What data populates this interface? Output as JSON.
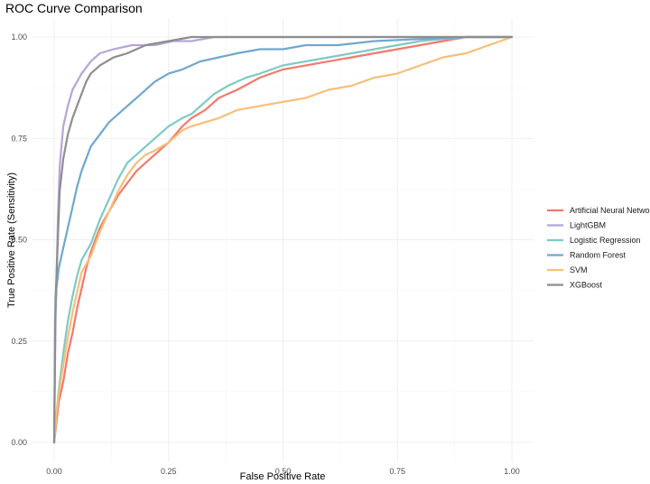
{
  "chart_data": {
    "type": "line",
    "title": "ROC Curve Comparison",
    "xlabel": "False Positive Rate",
    "ylabel": "True Positive Rate (Sensitivity)",
    "xlim": [
      0,
      1
    ],
    "ylim": [
      0,
      1
    ],
    "x_ticks": [
      "0.00",
      "0.25",
      "0.50",
      "0.75",
      "1.00"
    ],
    "y_ticks": [
      "0.00",
      "0.25",
      "0.50",
      "0.75",
      "1.00"
    ],
    "grid": true,
    "legend_position": "right",
    "series": [
      {
        "name": "Artificial Neural Network",
        "color": "#F4796A",
        "points": [
          [
            0,
            0
          ],
          [
            0.005,
            0.05
          ],
          [
            0.01,
            0.1
          ],
          [
            0.02,
            0.15
          ],
          [
            0.03,
            0.22
          ],
          [
            0.04,
            0.27
          ],
          [
            0.05,
            0.33
          ],
          [
            0.06,
            0.38
          ],
          [
            0.07,
            0.43
          ],
          [
            0.08,
            0.47
          ],
          [
            0.09,
            0.5
          ],
          [
            0.1,
            0.53
          ],
          [
            0.12,
            0.57
          ],
          [
            0.14,
            0.61
          ],
          [
            0.16,
            0.64
          ],
          [
            0.18,
            0.67
          ],
          [
            0.2,
            0.69
          ],
          [
            0.22,
            0.71
          ],
          [
            0.25,
            0.74
          ],
          [
            0.28,
            0.78
          ],
          [
            0.3,
            0.8
          ],
          [
            0.33,
            0.82
          ],
          [
            0.36,
            0.85
          ],
          [
            0.4,
            0.87
          ],
          [
            0.45,
            0.9
          ],
          [
            0.5,
            0.92
          ],
          [
            0.55,
            0.93
          ],
          [
            0.6,
            0.94
          ],
          [
            0.65,
            0.95
          ],
          [
            0.7,
            0.96
          ],
          [
            0.75,
            0.97
          ],
          [
            0.8,
            0.98
          ],
          [
            0.85,
            0.99
          ],
          [
            0.9,
            1.0
          ],
          [
            1.0,
            1.0
          ]
        ]
      },
      {
        "name": "LightGBM",
        "color": "#B7A5D9",
        "points": [
          [
            0,
            0
          ],
          [
            0.003,
            0.3
          ],
          [
            0.008,
            0.55
          ],
          [
            0.012,
            0.68
          ],
          [
            0.02,
            0.78
          ],
          [
            0.03,
            0.83
          ],
          [
            0.04,
            0.87
          ],
          [
            0.06,
            0.91
          ],
          [
            0.08,
            0.94
          ],
          [
            0.1,
            0.96
          ],
          [
            0.13,
            0.97
          ],
          [
            0.17,
            0.98
          ],
          [
            0.22,
            0.98
          ],
          [
            0.26,
            0.99
          ],
          [
            0.3,
            0.99
          ],
          [
            0.35,
            1.0
          ],
          [
            1.0,
            1.0
          ]
        ]
      },
      {
        "name": "Logistic Regression",
        "color": "#7ECAC4",
        "points": [
          [
            0,
            0
          ],
          [
            0.005,
            0.07
          ],
          [
            0.01,
            0.13
          ],
          [
            0.02,
            0.22
          ],
          [
            0.03,
            0.3
          ],
          [
            0.04,
            0.36
          ],
          [
            0.05,
            0.41
          ],
          [
            0.06,
            0.45
          ],
          [
            0.08,
            0.49
          ],
          [
            0.1,
            0.55
          ],
          [
            0.12,
            0.6
          ],
          [
            0.14,
            0.65
          ],
          [
            0.16,
            0.69
          ],
          [
            0.18,
            0.71
          ],
          [
            0.2,
            0.73
          ],
          [
            0.22,
            0.75
          ],
          [
            0.25,
            0.78
          ],
          [
            0.28,
            0.8
          ],
          [
            0.3,
            0.81
          ],
          [
            0.32,
            0.83
          ],
          [
            0.35,
            0.86
          ],
          [
            0.38,
            0.88
          ],
          [
            0.42,
            0.9
          ],
          [
            0.45,
            0.91
          ],
          [
            0.5,
            0.93
          ],
          [
            0.55,
            0.94
          ],
          [
            0.6,
            0.95
          ],
          [
            0.65,
            0.96
          ],
          [
            0.7,
            0.97
          ],
          [
            0.75,
            0.98
          ],
          [
            0.8,
            0.99
          ],
          [
            0.85,
            0.995
          ],
          [
            0.9,
            1.0
          ],
          [
            1.0,
            1.0
          ]
        ]
      },
      {
        "name": "Random Forest",
        "color": "#6FA8CF",
        "points": [
          [
            0,
            0
          ],
          [
            0.002,
            0.3
          ],
          [
            0.005,
            0.38
          ],
          [
            0.01,
            0.43
          ],
          [
            0.02,
            0.48
          ],
          [
            0.03,
            0.53
          ],
          [
            0.04,
            0.58
          ],
          [
            0.05,
            0.63
          ],
          [
            0.06,
            0.67
          ],
          [
            0.07,
            0.7
          ],
          [
            0.08,
            0.73
          ],
          [
            0.1,
            0.76
          ],
          [
            0.12,
            0.79
          ],
          [
            0.14,
            0.81
          ],
          [
            0.16,
            0.83
          ],
          [
            0.18,
            0.85
          ],
          [
            0.2,
            0.87
          ],
          [
            0.22,
            0.89
          ],
          [
            0.25,
            0.91
          ],
          [
            0.28,
            0.92
          ],
          [
            0.32,
            0.94
          ],
          [
            0.36,
            0.95
          ],
          [
            0.4,
            0.96
          ],
          [
            0.45,
            0.97
          ],
          [
            0.5,
            0.97
          ],
          [
            0.55,
            0.98
          ],
          [
            0.62,
            0.98
          ],
          [
            0.7,
            0.99
          ],
          [
            0.8,
            0.995
          ],
          [
            0.9,
            1.0
          ],
          [
            1.0,
            1.0
          ]
        ]
      },
      {
        "name": "SVM",
        "color": "#F8BE78",
        "points": [
          [
            0,
            0
          ],
          [
            0.005,
            0.07
          ],
          [
            0.01,
            0.12
          ],
          [
            0.02,
            0.19
          ],
          [
            0.03,
            0.26
          ],
          [
            0.04,
            0.32
          ],
          [
            0.05,
            0.37
          ],
          [
            0.06,
            0.42
          ],
          [
            0.08,
            0.46
          ],
          [
            0.1,
            0.52
          ],
          [
            0.12,
            0.57
          ],
          [
            0.14,
            0.62
          ],
          [
            0.16,
            0.66
          ],
          [
            0.18,
            0.69
          ],
          [
            0.2,
            0.71
          ],
          [
            0.22,
            0.72
          ],
          [
            0.25,
            0.74
          ],
          [
            0.28,
            0.77
          ],
          [
            0.3,
            0.78
          ],
          [
            0.33,
            0.79
          ],
          [
            0.36,
            0.8
          ],
          [
            0.4,
            0.82
          ],
          [
            0.45,
            0.83
          ],
          [
            0.5,
            0.84
          ],
          [
            0.55,
            0.85
          ],
          [
            0.6,
            0.87
          ],
          [
            0.65,
            0.88
          ],
          [
            0.7,
            0.9
          ],
          [
            0.75,
            0.91
          ],
          [
            0.8,
            0.93
          ],
          [
            0.85,
            0.95
          ],
          [
            0.9,
            0.96
          ],
          [
            0.95,
            0.98
          ],
          [
            1.0,
            1.0
          ]
        ]
      },
      {
        "name": "XGBoost",
        "color": "#8E8E8E",
        "points": [
          [
            0,
            0
          ],
          [
            0.003,
            0.35
          ],
          [
            0.008,
            0.5
          ],
          [
            0.012,
            0.62
          ],
          [
            0.02,
            0.7
          ],
          [
            0.03,
            0.76
          ],
          [
            0.04,
            0.8
          ],
          [
            0.05,
            0.83
          ],
          [
            0.06,
            0.86
          ],
          [
            0.07,
            0.89
          ],
          [
            0.08,
            0.91
          ],
          [
            0.1,
            0.93
          ],
          [
            0.13,
            0.95
          ],
          [
            0.16,
            0.96
          ],
          [
            0.2,
            0.98
          ],
          [
            0.25,
            0.99
          ],
          [
            0.3,
            1.0
          ],
          [
            1.0,
            1.0
          ]
        ]
      }
    ]
  }
}
